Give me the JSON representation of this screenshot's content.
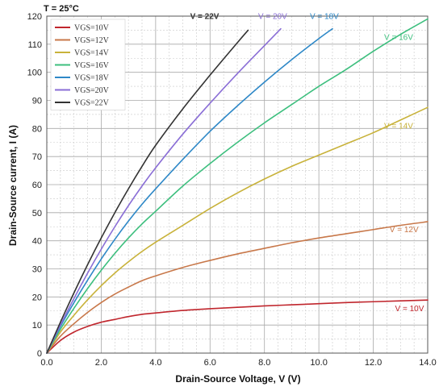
{
  "chart_data": {
    "type": "line",
    "title": "",
    "temperature_label": "T = 25°C",
    "xlabel": "Drain-Source Voltage, V (V)",
    "ylabel": "Drain-Source current, I (A)",
    "xlim": [
      0,
      14
    ],
    "ylim": [
      0,
      120
    ],
    "x_ticks": [
      "0.0",
      "2.0",
      "4.0",
      "6.0",
      "8.0",
      "10.0",
      "12.0",
      "14.0"
    ],
    "y_ticks": [
      "0",
      "10",
      "20",
      "30",
      "40",
      "50",
      "60",
      "70",
      "80",
      "90",
      "100",
      "110",
      "120"
    ],
    "grid": true,
    "legend_position": "top-left",
    "series": [
      {
        "name": "VGS=10V",
        "color": "#c0262d",
        "annotation": "V = 10V",
        "x": [
          0,
          0.5,
          1,
          1.5,
          2,
          2.5,
          3,
          3.5,
          4,
          5,
          6,
          7,
          8,
          9,
          10,
          11,
          12,
          13,
          14
        ],
        "y": [
          0,
          4.5,
          7.5,
          9.5,
          11,
          12,
          13,
          13.8,
          14.3,
          15.2,
          15.8,
          16.3,
          16.8,
          17.2,
          17.6,
          18,
          18.3,
          18.6,
          18.9
        ]
      },
      {
        "name": "VGS=12V",
        "color": "#c8784a",
        "annotation": "V = 12V",
        "x": [
          0,
          0.5,
          1,
          1.5,
          2,
          2.5,
          3,
          3.5,
          4,
          5,
          6,
          7,
          8,
          9,
          10,
          11,
          12,
          13,
          14
        ],
        "y": [
          0,
          6,
          10.5,
          14.5,
          18,
          21,
          23.5,
          25.8,
          27.5,
          30.5,
          33,
          35.3,
          37.3,
          39.3,
          41,
          42.5,
          44,
          45.5,
          46.8
        ]
      },
      {
        "name": "VGS=14V",
        "color": "#c8b23a",
        "annotation": "V = 14V",
        "x": [
          0,
          0.5,
          1,
          1.5,
          2,
          2.5,
          3,
          3.5,
          4,
          5,
          6,
          7,
          8,
          9,
          10,
          11,
          12,
          13,
          14
        ],
        "y": [
          0,
          7.5,
          13.5,
          19,
          24,
          28.5,
          32.5,
          36.2,
          39.5,
          45.5,
          51.5,
          57,
          62,
          66.5,
          70.5,
          74.5,
          78.5,
          83,
          87.5
        ]
      },
      {
        "name": "VGS=16V",
        "color": "#3dbf7e",
        "annotation": "V = 16V",
        "x": [
          0,
          0.5,
          1,
          1.5,
          2,
          2.5,
          3,
          3.5,
          4,
          5,
          6,
          7,
          8,
          9,
          10,
          11,
          12,
          13,
          14
        ],
        "y": [
          0,
          8.5,
          16,
          23,
          29.5,
          35.5,
          41,
          46,
          50.5,
          59.5,
          67.5,
          75,
          82,
          88.5,
          95,
          101,
          107.5,
          113.5,
          119
        ]
      },
      {
        "name": "VGS=18V",
        "color": "#2e88c7",
        "annotation": "V = 18V",
        "x": [
          0,
          0.5,
          1,
          1.5,
          2,
          2.5,
          3,
          3.5,
          4,
          5,
          6,
          7,
          8,
          9,
          10,
          10.5
        ],
        "y": [
          0,
          9.5,
          18,
          26,
          33.5,
          40.5,
          47,
          53,
          58.5,
          69,
          79,
          88,
          96.5,
          104.5,
          112,
          115.5
        ]
      },
      {
        "name": "VGS=20V",
        "color": "#8a6ed6",
        "annotation": "V = 20V",
        "x": [
          0,
          0.5,
          1,
          1.5,
          2,
          2.5,
          3,
          3.5,
          4,
          5,
          6,
          7,
          8,
          8.6
        ],
        "y": [
          0,
          10,
          19.5,
          28.5,
          37,
          45,
          52.5,
          59.5,
          66,
          78,
          89,
          99.5,
          109.5,
          115.5
        ]
      },
      {
        "name": "VGS=22V",
        "color": "#333333",
        "annotation": "V = 22V",
        "x": [
          0,
          0.5,
          1,
          1.5,
          2,
          2.5,
          3,
          3.5,
          4,
          5,
          6,
          7,
          7.4
        ],
        "y": [
          0,
          11,
          21.5,
          31.5,
          41,
          50,
          58.5,
          66.5,
          74,
          87,
          99,
          110.5,
          115
        ]
      }
    ]
  }
}
